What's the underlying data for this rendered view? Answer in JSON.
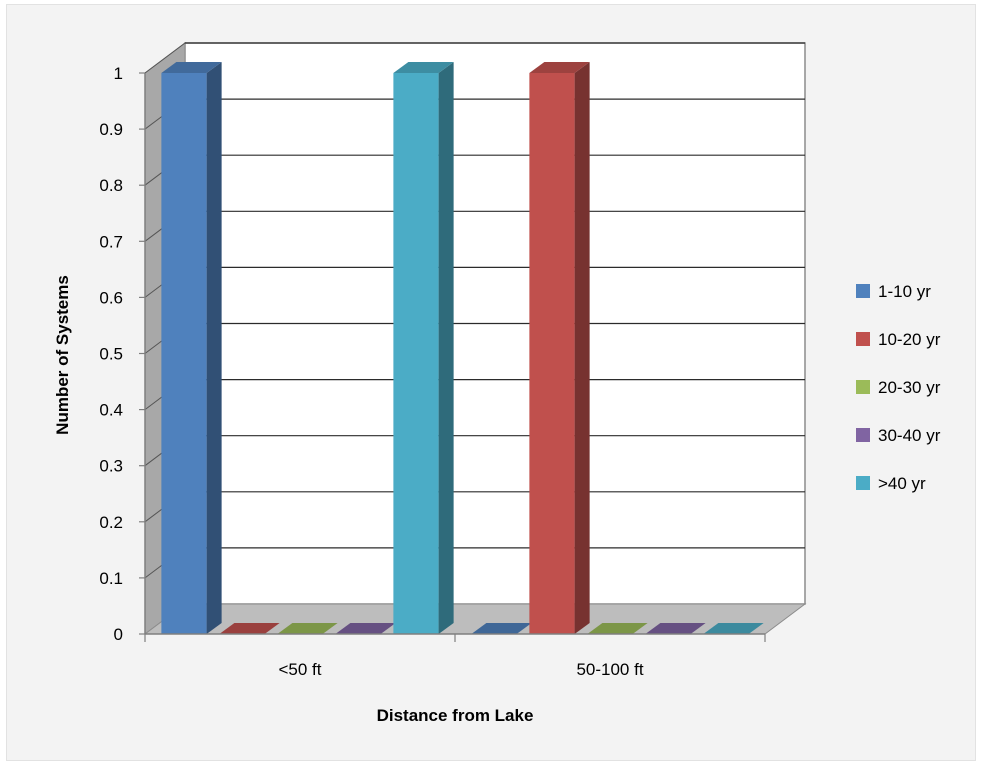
{
  "chart_data": {
    "type": "bar",
    "variant": "3d-clustered-column",
    "title": "",
    "xlabel": "Distance from Lake",
    "ylabel": "Number of Systems",
    "categories": [
      "<50 ft",
      "50-100 ft"
    ],
    "series": [
      {
        "name": "1-10 yr",
        "values": [
          1,
          0
        ],
        "color": "#4f81bd"
      },
      {
        "name": "10-20 yr",
        "values": [
          0,
          1
        ],
        "color": "#c0504d"
      },
      {
        "name": "20-30 yr",
        "values": [
          0,
          0
        ],
        "color": "#9bbb59"
      },
      {
        "name": "30-40 yr",
        "values": [
          0,
          0
        ],
        "color": "#8064a2"
      },
      {
        "name": ">40 yr",
        "values": [
          1,
          0
        ],
        "color": "#4bacc6"
      }
    ],
    "ylim": [
      0,
      1
    ],
    "yticks": [
      0,
      0.1,
      0.2,
      0.3,
      0.4,
      0.5,
      0.6,
      0.7,
      0.8,
      0.9,
      1
    ],
    "ytick_labels": [
      "0",
      "0.1",
      "0.2",
      "0.3",
      "0.4",
      "0.5",
      "0.6",
      "0.7",
      "0.8",
      "0.9",
      "1"
    ],
    "grid": true,
    "legend": "right"
  }
}
